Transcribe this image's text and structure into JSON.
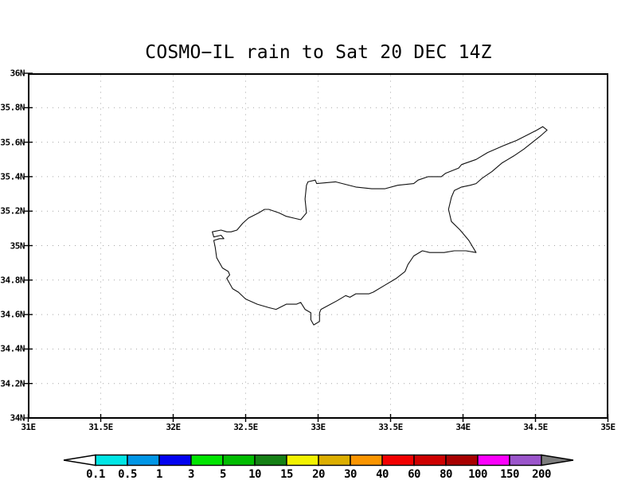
{
  "title": "COSMO−IL rain to Sat 20 DEC 14Z",
  "axes": {
    "y_ticks": [
      {
        "label": "36N",
        "lat": 36
      },
      {
        "label": "35.8N",
        "lat": 35.8
      },
      {
        "label": "35.6N",
        "lat": 35.6
      },
      {
        "label": "35.4N",
        "lat": 35.4
      },
      {
        "label": "35.2N",
        "lat": 35.2
      },
      {
        "label": "35N",
        "lat": 35
      },
      {
        "label": "34.8N",
        "lat": 34.8
      },
      {
        "label": "34.6N",
        "lat": 34.6
      },
      {
        "label": "34.4N",
        "lat": 34.4
      },
      {
        "label": "34.2N",
        "lat": 34.2
      },
      {
        "label": "34N",
        "lat": 34
      }
    ],
    "x_ticks": [
      {
        "label": "31E",
        "lon": 31
      },
      {
        "label": "31.5E",
        "lon": 31.5
      },
      {
        "label": "32E",
        "lon": 32
      },
      {
        "label": "32.5E",
        "lon": 32.5
      },
      {
        "label": "33E",
        "lon": 33
      },
      {
        "label": "33.5E",
        "lon": 33.5
      },
      {
        "label": "34E",
        "lon": 34
      },
      {
        "label": "34.5E",
        "lon": 34.5
      },
      {
        "label": "35E",
        "lon": 35
      }
    ],
    "lon_range": [
      31,
      35
    ],
    "lat_range": [
      34,
      36
    ],
    "grid": "dotted"
  },
  "map": {
    "coastline_lonlat": [
      [
        32.92,
        35.35
      ],
      [
        32.93,
        35.37
      ],
      [
        32.98,
        35.38
      ],
      [
        32.99,
        35.36
      ],
      [
        33.12,
        35.37
      ],
      [
        33.26,
        35.34
      ],
      [
        33.37,
        35.33
      ],
      [
        33.46,
        35.33
      ],
      [
        33.55,
        35.35
      ],
      [
        33.66,
        35.36
      ],
      [
        33.69,
        35.38
      ],
      [
        33.76,
        35.4
      ],
      [
        33.85,
        35.4
      ],
      [
        33.88,
        35.42
      ],
      [
        33.97,
        35.45
      ],
      [
        33.99,
        35.47
      ],
      [
        34.09,
        35.5
      ],
      [
        34.17,
        35.54
      ],
      [
        34.28,
        35.58
      ],
      [
        34.37,
        35.61
      ],
      [
        34.44,
        35.64
      ],
      [
        34.51,
        35.67
      ],
      [
        34.55,
        35.69
      ],
      [
        34.58,
        35.67
      ],
      [
        34.54,
        35.64
      ],
      [
        34.48,
        35.6
      ],
      [
        34.42,
        35.56
      ],
      [
        34.35,
        35.52
      ],
      [
        34.27,
        35.48
      ],
      [
        34.2,
        35.43
      ],
      [
        34.13,
        35.39
      ],
      [
        34.09,
        35.36
      ],
      [
        34.05,
        35.35
      ],
      [
        33.99,
        35.34
      ],
      [
        33.94,
        35.32
      ],
      [
        33.92,
        35.28
      ],
      [
        33.9,
        35.21
      ],
      [
        33.92,
        35.14
      ],
      [
        33.98,
        35.09
      ],
      [
        34.04,
        35.03
      ],
      [
        34.09,
        34.96
      ],
      [
        34.02,
        34.97
      ],
      [
        33.94,
        34.97
      ],
      [
        33.87,
        34.96
      ],
      [
        33.77,
        34.96
      ],
      [
        33.72,
        34.97
      ],
      [
        33.66,
        34.94
      ],
      [
        33.62,
        34.89
      ],
      [
        33.6,
        34.85
      ],
      [
        33.54,
        34.81
      ],
      [
        33.46,
        34.77
      ],
      [
        33.38,
        34.73
      ],
      [
        33.35,
        34.72
      ],
      [
        33.26,
        34.72
      ],
      [
        33.22,
        34.7
      ],
      [
        33.19,
        34.71
      ],
      [
        33.13,
        34.68
      ],
      [
        33.02,
        34.63
      ],
      [
        33.01,
        34.61
      ],
      [
        33.01,
        34.56
      ],
      [
        32.97,
        34.54
      ],
      [
        32.95,
        34.57
      ],
      [
        32.95,
        34.61
      ],
      [
        32.91,
        34.63
      ],
      [
        32.88,
        34.67
      ],
      [
        32.85,
        34.66
      ],
      [
        32.78,
        34.66
      ],
      [
        32.71,
        34.63
      ],
      [
        32.66,
        34.64
      ],
      [
        32.58,
        34.66
      ],
      [
        32.5,
        34.69
      ],
      [
        32.45,
        34.73
      ],
      [
        32.41,
        34.75
      ],
      [
        32.37,
        34.81
      ],
      [
        32.39,
        34.83
      ],
      [
        32.38,
        34.85
      ],
      [
        32.34,
        34.87
      ],
      [
        32.3,
        34.93
      ],
      [
        32.29,
        34.99
      ],
      [
        32.28,
        35.03
      ],
      [
        32.32,
        35.04
      ],
      [
        32.35,
        35.04
      ],
      [
        32.33,
        35.06
      ],
      [
        32.28,
        35.05
      ],
      [
        32.27,
        35.08
      ],
      [
        32.33,
        35.09
      ],
      [
        32.37,
        35.08
      ],
      [
        32.4,
        35.08
      ],
      [
        32.44,
        35.09
      ],
      [
        32.48,
        35.13
      ],
      [
        32.52,
        35.16
      ],
      [
        32.59,
        35.19
      ],
      [
        32.63,
        35.21
      ],
      [
        32.66,
        35.21
      ],
      [
        32.73,
        35.19
      ],
      [
        32.78,
        35.17
      ],
      [
        32.83,
        35.16
      ],
      [
        32.88,
        35.15
      ],
      [
        32.92,
        35.19
      ],
      [
        32.91,
        35.27
      ]
    ]
  },
  "colorbar": {
    "levels": [
      "0.1",
      "0.5",
      "1",
      "3",
      "5",
      "10",
      "15",
      "20",
      "30",
      "40",
      "60",
      "80",
      "100",
      "150",
      "200"
    ],
    "segment_colors": [
      "#00E5E5",
      "#0096E6",
      "#0202F0",
      "#00E400",
      "#00BC00",
      "#158015",
      "#F2F200",
      "#DCAE00",
      "#FA9500",
      "#F20000",
      "#CE0000",
      "#A80000",
      "#FB00FB",
      "#9B55CB"
    ],
    "below_min_color": "#FFFFFF",
    "above_max_color": "#7C7C7C",
    "outline_color": "#000000"
  }
}
